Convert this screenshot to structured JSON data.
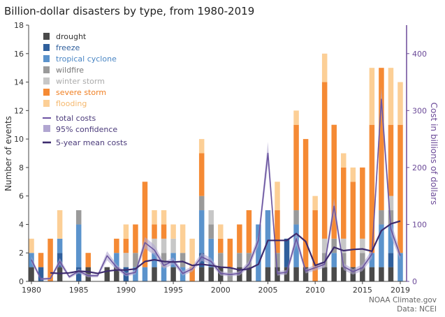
{
  "title": "Billion-dollar disasters by type, from 1980-2019",
  "credit": {
    "line1": "NOAA Climate.gov",
    "line2": "Data: NCEI"
  },
  "colors": {
    "drought": "#4a4a4a",
    "freeze": "#2f5f9c",
    "tropical cyclone": "#5b93cc",
    "wildfire": "#9a9a9a",
    "winter storm": "#c7c7c7",
    "severe storm": "#f58a34",
    "flooding": "#fccf96",
    "total costs": "#6b55a0",
    "95% confidence": "#b1a6d1",
    "5-year mean costs": "#3d2b6e",
    "right axis": "#6b4a98"
  },
  "chart_data": {
    "type": "bar",
    "stacked": true,
    "title": "Billion-dollar disasters by type, from 1980-2019",
    "x": [
      1980,
      1981,
      1982,
      1983,
      1984,
      1985,
      1986,
      1987,
      1988,
      1989,
      1990,
      1991,
      1992,
      1993,
      1994,
      1995,
      1996,
      1997,
      1998,
      1999,
      2000,
      2001,
      2002,
      2003,
      2004,
      2005,
      2006,
      2007,
      2008,
      2009,
      2010,
      2011,
      2012,
      2013,
      2014,
      2015,
      2016,
      2017,
      2018,
      2019
    ],
    "x_ticks": [
      1980,
      1985,
      1990,
      1995,
      2000,
      2005,
      2010,
      2015,
      2019
    ],
    "ylabel": "Number of events",
    "ylim": [
      0,
      18
    ],
    "y_ticks": [
      0,
      2,
      4,
      6,
      8,
      10,
      12,
      14,
      16,
      18
    ],
    "y2label": "Cost in billions of dollars",
    "y2lim": [
      0,
      450
    ],
    "y2_ticks": [
      0,
      100,
      200,
      300,
      400
    ],
    "grid": false,
    "legend_position": "top-left",
    "series": [
      {
        "name": "drought",
        "values": [
          1,
          0,
          0,
          1,
          0,
          0,
          1,
          0,
          1,
          1,
          0,
          0,
          0,
          1,
          0,
          1,
          0,
          0,
          1,
          1,
          1,
          0,
          1,
          1,
          0,
          1,
          1,
          1,
          1,
          1,
          0,
          1,
          1,
          1,
          1,
          1,
          1,
          1,
          1,
          0
        ]
      },
      {
        "name": "freeze",
        "values": [
          0,
          1,
          0,
          1,
          0,
          1,
          0,
          0,
          0,
          0,
          1,
          0,
          0,
          0,
          0,
          0,
          0,
          0,
          1,
          0,
          0,
          0,
          0,
          0,
          0,
          0,
          0,
          2,
          0,
          0,
          0,
          0,
          0,
          0,
          0,
          0,
          0,
          0,
          1,
          0
        ]
      },
      {
        "name": "tropical cyclone",
        "values": [
          1,
          0,
          0,
          1,
          0,
          3,
          0,
          0,
          0,
          1,
          0,
          1,
          1,
          1,
          1,
          1,
          1,
          0,
          3,
          2,
          0,
          0,
          0,
          0,
          4,
          4,
          0,
          0,
          3,
          0,
          0,
          0,
          1,
          0,
          0,
          0,
          1,
          3,
          2,
          2
        ]
      },
      {
        "name": "wildfire",
        "values": [
          0,
          0,
          0,
          0,
          0,
          1,
          0,
          0,
          0,
          0,
          0,
          1,
          0,
          0,
          1,
          0,
          1,
          0,
          1,
          1,
          1,
          1,
          1,
          1,
          0,
          0,
          1,
          0,
          1,
          0,
          0,
          1,
          1,
          1,
          0,
          1,
          0,
          1,
          1,
          0
        ]
      },
      {
        "name": "winter storm",
        "values": [
          0,
          0,
          0,
          0,
          0,
          0,
          0,
          0,
          0,
          0,
          1,
          0,
          0,
          1,
          1,
          1,
          0,
          0,
          0,
          1,
          0,
          0,
          0,
          0,
          0,
          0,
          0,
          0,
          0,
          0,
          0,
          1,
          0,
          1,
          0,
          1,
          0,
          0,
          1,
          0
        ]
      },
      {
        "name": "severe storm",
        "values": [
          0,
          1,
          3,
          0,
          0,
          0,
          1,
          0,
          0,
          1,
          1,
          2,
          6,
          1,
          1,
          0,
          0,
          1,
          3,
          0,
          1,
          2,
          2,
          3,
          0,
          0,
          3,
          0,
          6,
          9,
          5,
          11,
          8,
          5,
          6,
          5,
          9,
          10,
          5,
          9
        ]
      },
      {
        "name": "flooding",
        "values": [
          1,
          0,
          0,
          2,
          0,
          0,
          0,
          0,
          0,
          0,
          1,
          0,
          0,
          1,
          1,
          1,
          2,
          2,
          1,
          0,
          1,
          0,
          0,
          0,
          0,
          0,
          2,
          0,
          1,
          0,
          1,
          2,
          0,
          1,
          1,
          0,
          4,
          0,
          4,
          3
        ]
      }
    ],
    "lines": [
      {
        "name": "total costs",
        "axis": "right",
        "values": [
          38,
          4,
          5,
          35,
          8,
          18,
          10,
          10,
          45,
          25,
          12,
          16,
          68,
          55,
          28,
          36,
          14,
          22,
          43,
          35,
          14,
          12,
          14,
          30,
          72,
          225,
          14,
          16,
          75,
          18,
          24,
          30,
          132,
          26,
          17,
          24,
          48,
          320,
          92,
          45
        ]
      },
      {
        "name": "95% confidence",
        "axis": "right",
        "lower": [
          32,
          2,
          3,
          29,
          5,
          14,
          7,
          7,
          37,
          20,
          9,
          12,
          58,
          46,
          22,
          30,
          10,
          17,
          36,
          29,
          10,
          9,
          10,
          24,
          62,
          205,
          10,
          12,
          64,
          14,
          19,
          24,
          118,
          20,
          12,
          18,
          40,
          298,
          79,
          37
        ],
        "upper": [
          44,
          6,
          7,
          41,
          11,
          22,
          13,
          13,
          53,
          30,
          15,
          20,
          78,
          64,
          34,
          42,
          18,
          27,
          50,
          41,
          18,
          15,
          18,
          36,
          82,
          245,
          18,
          20,
          86,
          22,
          29,
          36,
          146,
          32,
          22,
          30,
          56,
          342,
          105,
          53
        ]
      },
      {
        "name": "5-year mean costs",
        "axis": "right",
        "values": [
          null,
          null,
          15,
          14,
          15,
          18,
          17,
          14,
          18,
          20,
          20,
          22,
          35,
          38,
          35,
          34,
          35,
          28,
          30,
          28,
          25,
          24,
          20,
          22,
          30,
          72,
          72,
          72,
          84,
          70,
          28,
          34,
          60,
          54,
          56,
          57,
          53,
          89,
          101,
          106
        ]
      }
    ]
  }
}
